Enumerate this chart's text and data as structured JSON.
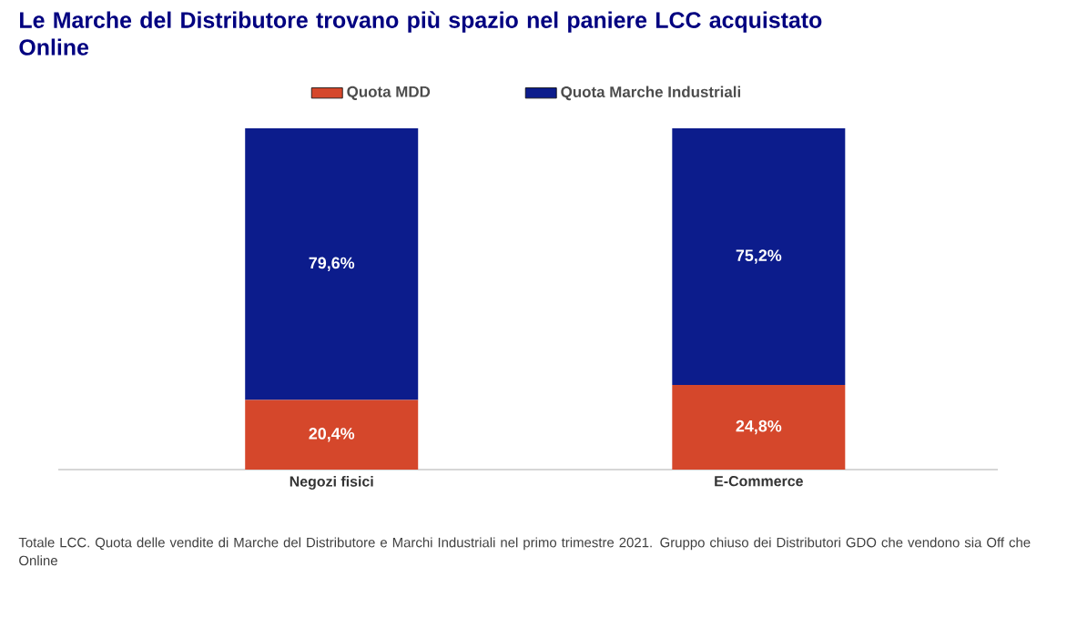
{
  "chart_data": {
    "type": "bar",
    "stacked": true,
    "title": "Le Marche del Distributore trovano più spazio nel paniere LCC acquistato Online",
    "categories": [
      "Negozi fisici",
      "E-Commerce"
    ],
    "series": [
      {
        "name": "Quota MDD",
        "color": "#d5472b",
        "values": [
          20.4,
          24.8
        ],
        "value_labels": [
          "20,4%",
          "24,8%"
        ]
      },
      {
        "name": "Quota Marche Industriali",
        "color": "#0c1c8c",
        "values": [
          79.6,
          75.2
        ],
        "value_labels": [
          "79,6%",
          "75,2%"
        ]
      }
    ],
    "legend": "top",
    "annotations": [
      "Totale LCC. Quota delle vendite di Marche del Distributore e Marchi Industriali nel primo trimestre 2021. Gruppo chiuso  dei Distributori GDO che vendono sia Off che Online"
    ]
  }
}
